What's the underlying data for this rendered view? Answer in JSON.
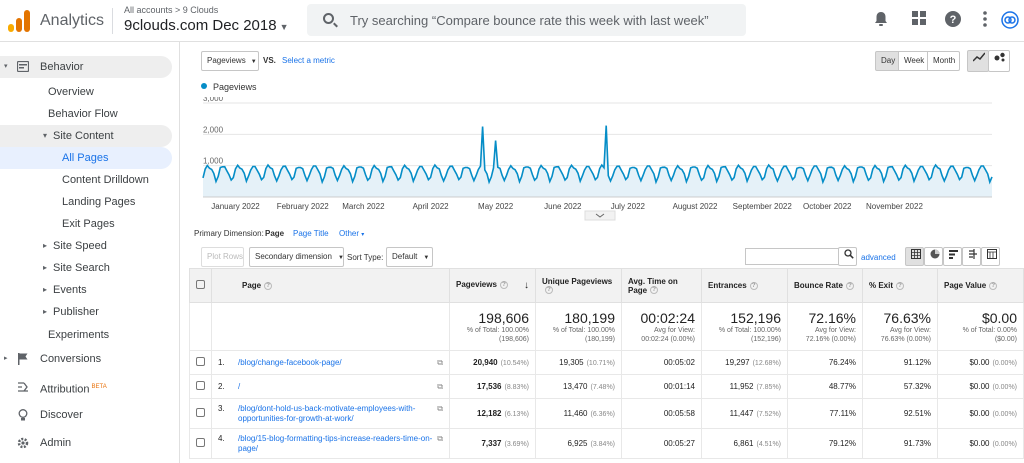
{
  "app": {
    "title": "Analytics",
    "breadcrumb": "All accounts > 9 Clouds",
    "account": "9clouds.com Dec 2018",
    "search_placeholder": "Try searching “Compare bounce rate this week with last week”"
  },
  "sidebar": {
    "items": [
      {
        "label": "Behavior",
        "icon": "behavior-icon"
      },
      {
        "label": "Overview"
      },
      {
        "label": "Behavior Flow"
      },
      {
        "label": "Site Content",
        "caret": "▾"
      },
      {
        "label": "All Pages"
      },
      {
        "label": "Content Drilldown"
      },
      {
        "label": "Landing Pages"
      },
      {
        "label": "Exit Pages"
      },
      {
        "label": "Site Speed",
        "caret": "▸"
      },
      {
        "label": "Site Search",
        "caret": "▸"
      },
      {
        "label": "Events",
        "caret": "▸"
      },
      {
        "label": "Publisher",
        "caret": "▸"
      },
      {
        "label": "Experiments"
      },
      {
        "label": "Conversions",
        "icon": "flag-icon"
      },
      {
        "label": "Attribution",
        "icon": "attribution-icon",
        "badge": "BETA"
      },
      {
        "label": "Discover",
        "icon": "lightbulb-icon"
      },
      {
        "label": "Admin",
        "icon": "gear-icon"
      }
    ]
  },
  "controls": {
    "metric": "Pageviews",
    "vs": "VS.",
    "select_metric": "Select a metric",
    "day": "Day",
    "week": "Week",
    "month": "Month",
    "legend": "Pageviews",
    "primary_dimension": "Primary Dimension:",
    "dim_page": "Page",
    "dim_title": "Page Title",
    "dim_other": "Other",
    "plot_rows": "Plot Rows",
    "secondary_dimension": "Secondary dimension",
    "sort_type": "Sort Type:",
    "sort_default": "Default",
    "advanced": "advanced"
  },
  "chart_data": {
    "type": "line",
    "series": [
      {
        "name": "Pageviews",
        "color": "#058dc7"
      }
    ],
    "ylim": [
      0,
      3000
    ],
    "yticks": [
      "3,000",
      "2,000",
      "1,000"
    ],
    "xticks": [
      "January 2022",
      "February 2022",
      "March 2022",
      "April 2022",
      "May 2022",
      "June 2022",
      "July 2022",
      "August 2022",
      "September 2022",
      "October 2022",
      "November 2022"
    ],
    "days": 365,
    "weekly_pattern": [
      650,
      900,
      980,
      950,
      880,
      720,
      520
    ],
    "spikes": [
      {
        "day": 129,
        "value": 2250
      },
      {
        "day": 135,
        "value": 1800
      },
      {
        "day": 186,
        "value": 2280
      }
    ]
  },
  "table": {
    "headers": [
      "Page",
      "Pageviews",
      "Unique Pageviews",
      "Avg. Time on Page",
      "Entrances",
      "Bounce Rate",
      "% Exit",
      "Page Value"
    ],
    "totals": [
      {
        "value": "198,606",
        "sub1": "% of Total: 100.00%",
        "sub2": "(198,606)"
      },
      {
        "value": "180,199",
        "sub1": "% of Total: 100.00%",
        "sub2": "(180,199)"
      },
      {
        "value": "00:02:24",
        "sub1": "Avg for View:",
        "sub2": "00:02:24 (0.00%)"
      },
      {
        "value": "152,196",
        "sub1": "% of Total: 100.00%",
        "sub2": "(152,196)"
      },
      {
        "value": "72.16%",
        "sub1": "Avg for View:",
        "sub2": "72.16% (0.00%)"
      },
      {
        "value": "76.63%",
        "sub1": "Avg for View:",
        "sub2": "76.63% (0.00%)"
      },
      {
        "value": "$0.00",
        "sub1": "% of Total: 0.00%",
        "sub2": "($0.00)"
      }
    ],
    "rows": [
      {
        "n": "1.",
        "page": "/blog/change-facebook-page/",
        "pv": "20,940",
        "pvp": "(10.54%)",
        "upv": "19,305",
        "upvp": "(10.71%)",
        "time": "00:05:02",
        "ent": "19,297",
        "entp": "(12.68%)",
        "br": "76.24%",
        "exit": "91.12%",
        "val": "$0.00",
        "valp": "(0.00%)"
      },
      {
        "n": "2.",
        "page": "/",
        "pv": "17,536",
        "pvp": "(8.83%)",
        "upv": "13,470",
        "upvp": "(7.48%)",
        "time": "00:01:14",
        "ent": "11,952",
        "entp": "(7.85%)",
        "br": "48.77%",
        "exit": "57.32%",
        "val": "$0.00",
        "valp": "(0.00%)"
      },
      {
        "n": "3.",
        "page": "/blog/dont-hold-us-back-motivate-employees-with-opportunities-for-growth-at-work/",
        "pv": "12,182",
        "pvp": "(6.13%)",
        "upv": "11,460",
        "upvp": "(6.36%)",
        "time": "00:05:58",
        "ent": "11,447",
        "entp": "(7.52%)",
        "br": "77.11%",
        "exit": "92.51%",
        "val": "$0.00",
        "valp": "(0.00%)"
      },
      {
        "n": "4.",
        "page": "/blog/15-blog-formatting-tips-increase-readers-time-on-page/",
        "pv": "7,337",
        "pvp": "(3.69%)",
        "upv": "6,925",
        "upvp": "(3.84%)",
        "time": "00:05:27",
        "ent": "6,861",
        "entp": "(4.51%)",
        "br": "79.12%",
        "exit": "91.73%",
        "val": "$0.00",
        "valp": "(0.00%)"
      }
    ]
  }
}
